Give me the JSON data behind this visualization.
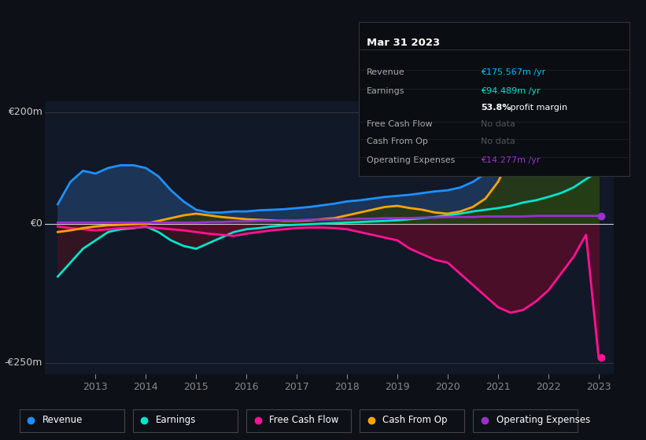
{
  "bg_color": "#0d1117",
  "plot_bg_color": "#111827",
  "grid_color": "#ffffff",
  "title_box": {
    "date": "Mar 31 2023",
    "rows": [
      {
        "label": "Revenue",
        "value": "€175.567m /yr",
        "value_color": "#00bfff"
      },
      {
        "label": "Earnings",
        "value": "€94.489m /yr",
        "value_color": "#00e5cc"
      },
      {
        "label": "",
        "value": "53.8% profit margin",
        "value_color": "#ffffff"
      },
      {
        "label": "Free Cash Flow",
        "value": "No data",
        "value_color": "#666666"
      },
      {
        "label": "Cash From Op",
        "value": "No data",
        "value_color": "#666666"
      },
      {
        "label": "Operating Expenses",
        "value": "€14.277m /yr",
        "value_color": "#aa44ff"
      }
    ]
  },
  "ylabel_top": "€200m",
  "ylabel_zero": "€0",
  "ylabel_bottom": "-€250m",
  "years": [
    2012.25,
    2012.5,
    2012.75,
    2013.0,
    2013.25,
    2013.5,
    2013.75,
    2014.0,
    2014.25,
    2014.5,
    2014.75,
    2015.0,
    2015.25,
    2015.5,
    2015.75,
    2016.0,
    2016.25,
    2016.5,
    2016.75,
    2017.0,
    2017.25,
    2017.5,
    2017.75,
    2018.0,
    2018.25,
    2018.5,
    2018.75,
    2019.0,
    2019.25,
    2019.5,
    2019.75,
    2020.0,
    2020.25,
    2020.5,
    2020.75,
    2021.0,
    2021.25,
    2021.5,
    2021.75,
    2022.0,
    2022.25,
    2022.5,
    2022.75,
    2023.0
  ],
  "revenue": [
    35,
    75,
    95,
    90,
    100,
    105,
    105,
    100,
    85,
    60,
    40,
    25,
    20,
    20,
    22,
    22,
    24,
    25,
    26,
    28,
    30,
    33,
    36,
    40,
    42,
    45,
    48,
    50,
    52,
    55,
    58,
    60,
    65,
    75,
    90,
    110,
    130,
    150,
    155,
    145,
    140,
    148,
    158,
    175
  ],
  "earnings": [
    -95,
    -70,
    -45,
    -30,
    -15,
    -10,
    -8,
    -5,
    -15,
    -30,
    -40,
    -45,
    -35,
    -25,
    -15,
    -10,
    -8,
    -5,
    -3,
    -2,
    -1,
    0,
    1,
    2,
    3,
    4,
    5,
    6,
    8,
    10,
    12,
    15,
    18,
    22,
    25,
    28,
    32,
    38,
    42,
    48,
    55,
    65,
    80,
    94
  ],
  "free_cash_flow": [
    -5,
    -8,
    -10,
    -12,
    -10,
    -8,
    -7,
    -6,
    -8,
    -10,
    -12,
    -15,
    -18,
    -20,
    -22,
    -18,
    -15,
    -12,
    -10,
    -8,
    -7,
    -7,
    -8,
    -10,
    -15,
    -20,
    -25,
    -30,
    -45,
    -55,
    -65,
    -70,
    -90,
    -110,
    -130,
    -150,
    -160,
    -155,
    -140,
    -120,
    -90,
    -60,
    -20,
    -240
  ],
  "cash_from_op": [
    -15,
    -12,
    -8,
    -5,
    -3,
    -2,
    -1,
    0,
    5,
    10,
    15,
    18,
    15,
    12,
    10,
    8,
    7,
    6,
    5,
    5,
    6,
    8,
    10,
    15,
    20,
    25,
    30,
    32,
    28,
    25,
    20,
    18,
    22,
    30,
    45,
    75,
    120,
    145,
    130,
    115,
    105,
    115,
    125,
    130
  ],
  "op_expenses": [
    2,
    2,
    2,
    2,
    2,
    2,
    2,
    2,
    2,
    2,
    2,
    2,
    3,
    3,
    4,
    4,
    5,
    5,
    6,
    6,
    7,
    7,
    8,
    8,
    9,
    9,
    10,
    10,
    10,
    11,
    11,
    12,
    12,
    12,
    13,
    13,
    13,
    13,
    14,
    14,
    14,
    14,
    14,
    14
  ],
  "revenue_color": "#1e90ff",
  "earnings_color": "#00e5cc",
  "fcf_color": "#ff1493",
  "cfo_color": "#ffa500",
  "opex_color": "#9932cc",
  "revenue_fill": "#1e3a5f",
  "earnings_fill_pos": "#1a4a44",
  "earnings_fill_neg": "#3a1520",
  "fcf_fill": "#6b0a2a",
  "cfo_fill": "#3a2800",
  "legend_items": [
    {
      "label": "Revenue",
      "color": "#1e90ff"
    },
    {
      "label": "Earnings",
      "color": "#00e5cc"
    },
    {
      "label": "Free Cash Flow",
      "color": "#ff1493"
    },
    {
      "label": "Cash From Op",
      "color": "#ffa500"
    },
    {
      "label": "Operating Expenses",
      "color": "#9932cc"
    }
  ],
  "xticks": [
    2013,
    2014,
    2015,
    2016,
    2017,
    2018,
    2019,
    2020,
    2021,
    2022,
    2023
  ],
  "ylim": [
    -270,
    220
  ],
  "xlim": [
    2012.0,
    2023.3
  ]
}
